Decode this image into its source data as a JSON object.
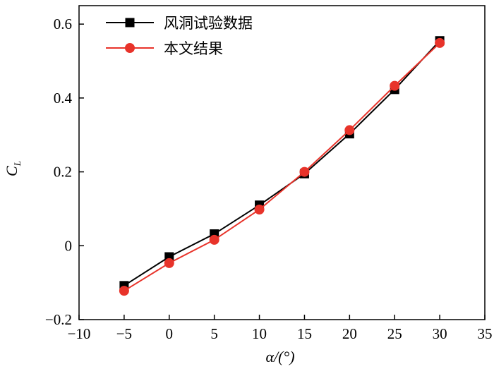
{
  "chart_data": {
    "type": "line",
    "xlabel": "α/(°)",
    "ylabel_main": "C",
    "ylabel_sub": "L",
    "xlim": [
      -10,
      35
    ],
    "ylim": [
      -0.2,
      0.65
    ],
    "xticks": [
      -10,
      -5,
      0,
      5,
      10,
      15,
      20,
      25,
      30,
      35
    ],
    "xtick_labels": [
      "−10",
      "−5",
      "0",
      "5",
      "10",
      "15",
      "20",
      "25",
      "30",
      "35"
    ],
    "yticks": [
      -0.2,
      0,
      0.2,
      0.4,
      0.6
    ],
    "ytick_labels": [
      "−0.2",
      "0",
      "0.2",
      "0.4",
      "0.6"
    ],
    "grid": false,
    "legend_position": "top-left",
    "x": [
      -5,
      0,
      5,
      10,
      15,
      20,
      25,
      30
    ],
    "series": [
      {
        "name": "风洞试验数据",
        "color": "#000000",
        "marker": "square",
        "values": [
          -0.108,
          -0.03,
          0.032,
          0.11,
          0.195,
          0.303,
          0.423,
          0.555
        ]
      },
      {
        "name": "本文结果",
        "color": "#e8332a",
        "marker": "circle",
        "values": [
          -0.122,
          -0.047,
          0.016,
          0.098,
          0.2,
          0.313,
          0.433,
          0.549
        ]
      }
    ]
  }
}
